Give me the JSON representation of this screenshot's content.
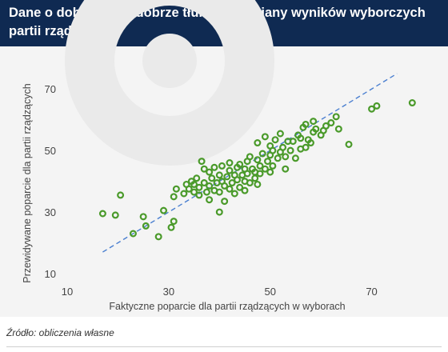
{
  "header": {
    "title": "Dane o dobrostanie dobrze tłumaczą zmiany wyników wyborczych partii rządzących"
  },
  "source": "Źródło: obliczenia własne",
  "colors": {
    "header_bg": "#0f2a52",
    "marker": "#4a9a2a",
    "trend_line": "#4a7fd0",
    "watermark": "#e9e9e9"
  },
  "chart_data": {
    "type": "scatter",
    "title": "",
    "xlabel": "Faktyczne poparcie dla partii rządzących w wyborach",
    "ylabel": "Przewidywane poparcie dla partii rządzących",
    "xlim": [
      10,
      80
    ],
    "ylim": [
      10,
      75
    ],
    "xticks": [
      10,
      30,
      50,
      70
    ],
    "yticks": [
      10,
      30,
      50,
      70
    ],
    "grid": false,
    "marker": "hollow-circle",
    "trend_line": {
      "style": "dashed",
      "x": [
        17,
        75
      ],
      "y": [
        17,
        75
      ]
    },
    "points": [
      [
        17,
        29.5
      ],
      [
        19.5,
        29
      ],
      [
        20.5,
        35.5
      ],
      [
        23,
        23
      ],
      [
        25,
        28.5
      ],
      [
        25.5,
        25.5
      ],
      [
        28,
        22
      ],
      [
        29,
        30.5
      ],
      [
        30.5,
        25
      ],
      [
        31,
        27
      ],
      [
        31,
        35
      ],
      [
        31.5,
        37.5
      ],
      [
        33,
        36
      ],
      [
        33.5,
        39
      ],
      [
        34,
        37.5
      ],
      [
        34.5,
        40
      ],
      [
        35,
        39
      ],
      [
        35,
        36.5
      ],
      [
        35.5,
        41
      ],
      [
        36,
        38
      ],
      [
        36,
        35.5
      ],
      [
        36.5,
        46.5
      ],
      [
        37,
        44
      ],
      [
        37,
        39.5
      ],
      [
        37.5,
        36.5
      ],
      [
        38,
        43
      ],
      [
        38,
        38.5
      ],
      [
        38,
        34
      ],
      [
        38.5,
        41
      ],
      [
        39,
        37
      ],
      [
        39,
        44.5
      ],
      [
        39.5,
        39.5
      ],
      [
        40,
        42
      ],
      [
        40,
        36.5
      ],
      [
        40,
        30
      ],
      [
        40.5,
        45
      ],
      [
        40.5,
        40
      ],
      [
        41,
        38.5
      ],
      [
        41,
        33.5
      ],
      [
        41.5,
        41.5
      ],
      [
        42,
        43.5
      ],
      [
        42,
        37.5
      ],
      [
        42,
        46
      ],
      [
        42.5,
        39.5
      ],
      [
        43,
        42
      ],
      [
        43,
        36
      ],
      [
        43.5,
        44.5
      ],
      [
        43.5,
        40.5
      ],
      [
        44,
        38
      ],
      [
        44,
        45.5
      ],
      [
        44.5,
        42
      ],
      [
        45,
        40
      ],
      [
        45,
        37
      ],
      [
        45,
        44
      ],
      [
        45.5,
        46.5
      ],
      [
        45.5,
        42.5
      ],
      [
        46,
        39.5
      ],
      [
        46,
        48
      ],
      [
        46.5,
        44
      ],
      [
        47,
        41
      ],
      [
        47,
        43
      ],
      [
        47.5,
        47
      ],
      [
        47.5,
        39
      ],
      [
        47.5,
        52.5
      ],
      [
        48,
        45
      ],
      [
        48,
        42.5
      ],
      [
        48.5,
        49
      ],
      [
        49,
        44
      ],
      [
        49,
        54.5
      ],
      [
        49.5,
        46.5
      ],
      [
        50,
        48.5
      ],
      [
        50,
        43
      ],
      [
        50,
        51.5
      ],
      [
        50.5,
        50
      ],
      [
        50.5,
        45
      ],
      [
        51,
        53.5
      ],
      [
        51.5,
        47.5
      ],
      [
        52,
        49.5
      ],
      [
        52,
        55.5
      ],
      [
        52.5,
        51
      ],
      [
        53,
        44
      ],
      [
        53,
        48
      ],
      [
        53.5,
        53
      ],
      [
        54,
        50
      ],
      [
        54.5,
        53
      ],
      [
        55,
        47.5
      ],
      [
        55.5,
        55
      ],
      [
        56,
        54
      ],
      [
        56,
        50.5
      ],
      [
        56.5,
        57.5
      ],
      [
        57,
        51
      ],
      [
        57.5,
        53.5
      ],
      [
        57,
        58.5
      ],
      [
        58,
        52.5
      ],
      [
        58.5,
        56
      ],
      [
        58.5,
        59.5
      ],
      [
        59,
        57
      ],
      [
        60,
        55
      ],
      [
        60.5,
        56.5
      ],
      [
        61,
        58
      ],
      [
        62,
        59
      ],
      [
        63,
        61
      ],
      [
        63.5,
        57
      ],
      [
        65.5,
        52
      ],
      [
        70,
        63.5
      ],
      [
        71,
        64.5
      ],
      [
        78,
        65.5
      ]
    ]
  }
}
